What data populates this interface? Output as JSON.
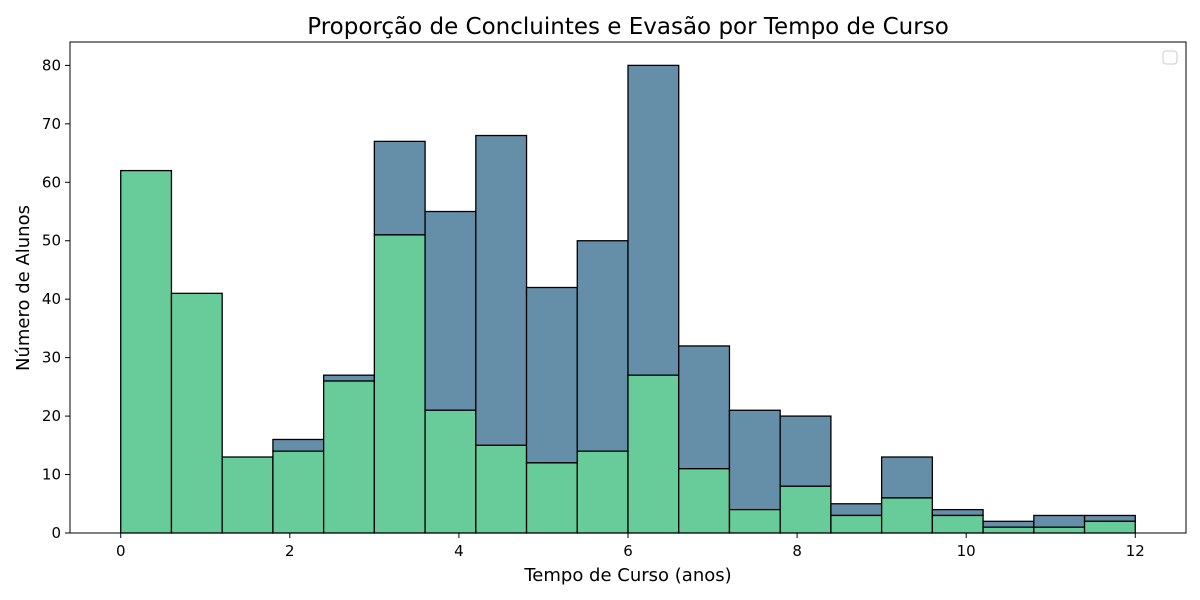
{
  "chart_data": {
    "type": "bar",
    "stacked": true,
    "title": "Proporção de Concluintes e Evasão por Tempo de Curso",
    "xlabel": "Tempo de Curso (anos)",
    "ylabel": "Número de Alunos",
    "xlim": [
      -0.6,
      12.6
    ],
    "ylim": [
      0,
      84
    ],
    "bin_width": 0.6,
    "bin_edges": [
      0,
      0.6,
      1.2,
      1.8,
      2.4,
      3.0,
      3.6,
      4.2,
      4.8,
      5.4,
      6.0,
      6.6,
      7.2,
      7.8,
      8.4,
      9.0,
      9.6,
      10.2,
      10.8,
      11.4,
      12.0
    ],
    "x_ticks": [
      0,
      2,
      4,
      6,
      8,
      10,
      12
    ],
    "y_ticks": [
      0,
      10,
      20,
      30,
      40,
      50,
      60,
      70,
      80
    ],
    "series": [
      {
        "color": "#67cc9a",
        "values": [
          62,
          41,
          13,
          14,
          26,
          51,
          21,
          15,
          12,
          14,
          27,
          11,
          4,
          8,
          3,
          6,
          3,
          1,
          1,
          2
        ]
      },
      {
        "color": "#658ea9",
        "values": [
          0,
          0,
          0,
          2,
          1,
          16,
          34,
          53,
          30,
          36,
          53,
          21,
          17,
          12,
          2,
          7,
          1,
          1,
          2,
          1
        ]
      }
    ],
    "legend": {
      "location": "top-right",
      "entries": []
    },
    "grid": false
  }
}
